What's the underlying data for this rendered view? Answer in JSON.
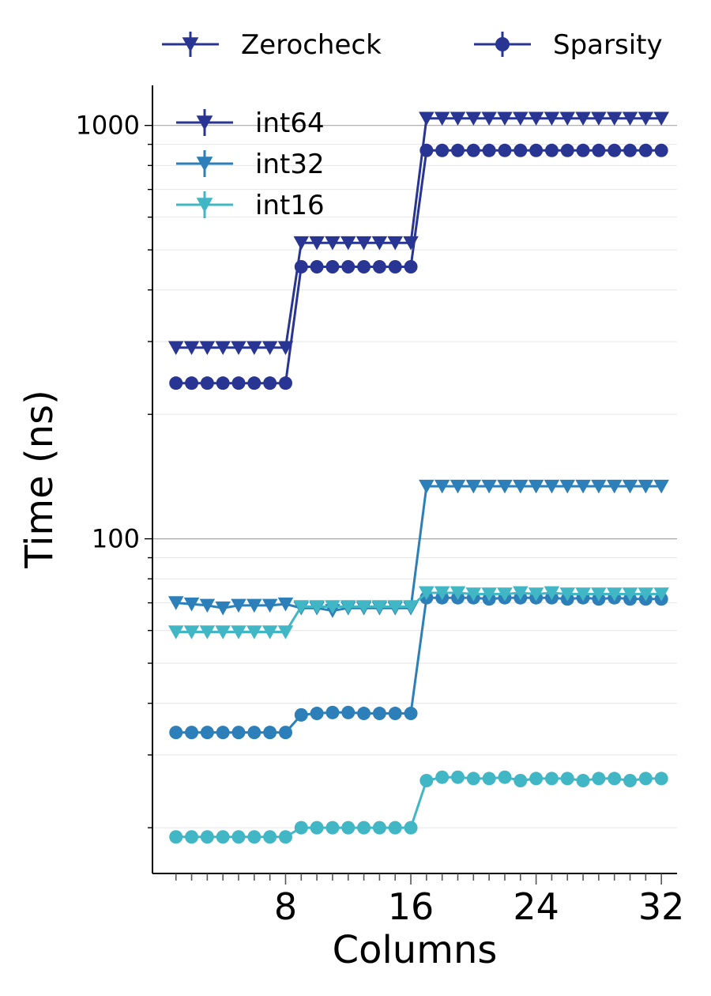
{
  "chart_data": {
    "type": "line",
    "xlabel": "Columns",
    "ylabel": "Time (ns)",
    "yscale": "log",
    "ylim": [
      15.5,
      1250
    ],
    "xlim": [
      -0.5,
      33
    ],
    "x_ticks": [
      8,
      16,
      24,
      32
    ],
    "y_ticks": [
      100,
      1000
    ],
    "y_tick_labels": [
      "100",
      "1000"
    ],
    "grid": "horizontal",
    "legend_top": {
      "placement": "top, above plot",
      "items": [
        {
          "label": "Zerocheck",
          "marker": "triangle-down"
        },
        {
          "label": "Sparsity",
          "marker": "circle"
        }
      ]
    },
    "legend_inner": {
      "placement": "upper-left",
      "items": [
        {
          "label": "int64",
          "color": "#283593"
        },
        {
          "label": "int32",
          "color": "#2c7fb8"
        },
        {
          "label": "int16",
          "color": "#41b6c4"
        }
      ]
    },
    "x": [
      1,
      2,
      3,
      4,
      5,
      6,
      7,
      8,
      9,
      10,
      11,
      12,
      13,
      14,
      15,
      16,
      17,
      18,
      19,
      20,
      21,
      22,
      23,
      24,
      25,
      26,
      27,
      28,
      29,
      30,
      31,
      32
    ],
    "series": [
      {
        "label": "int64",
        "marker": "triangle-down",
        "color": "#283593",
        "values": [
          290,
          290,
          290,
          290,
          290,
          290,
          290,
          290,
          520,
          520,
          520,
          520,
          520,
          520,
          520,
          520,
          1040,
          1040,
          1040,
          1040,
          1040,
          1040,
          1040,
          1040,
          1040,
          1040,
          1040,
          1040,
          1040,
          1040,
          1040,
          1040
        ]
      },
      {
        "label": "int64",
        "marker": "circle",
        "color": "#283593",
        "values": [
          238,
          238,
          238,
          238,
          238,
          238,
          238,
          238,
          455,
          455,
          455,
          455,
          455,
          455,
          455,
          455,
          870,
          870,
          870,
          870,
          870,
          870,
          870,
          870,
          870,
          870,
          870,
          870,
          870,
          870,
          870,
          870
        ]
      },
      {
        "label": "int32",
        "marker": "triangle-down",
        "color": "#2c7fb8",
        "values": [
          70,
          69.5,
          69,
          68,
          69,
          69,
          69,
          69.5,
          68,
          68,
          67,
          68,
          68,
          68,
          68,
          68,
          134,
          134,
          134,
          134,
          134,
          134,
          134,
          134,
          134,
          134,
          134,
          134,
          134,
          134,
          134,
          134
        ]
      },
      {
        "label": "int32",
        "marker": "circle",
        "color": "#2c7fb8",
        "values": [
          34,
          34,
          34,
          34,
          34,
          34,
          34,
          34,
          37.5,
          37.8,
          38,
          38,
          37.8,
          37.8,
          37.8,
          37.8,
          72,
          72,
          72,
          72,
          71.5,
          72,
          72,
          72,
          72,
          71.5,
          72,
          71.5,
          72,
          71.5,
          71.5,
          71.5
        ]
      },
      {
        "label": "int16",
        "marker": "triangle-down",
        "color": "#41b6c4",
        "values": [
          59.5,
          59.5,
          59.5,
          59.5,
          59.5,
          59.5,
          59.5,
          59.5,
          68.5,
          68.5,
          68.5,
          68.5,
          68.5,
          68.5,
          68.5,
          68.5,
          74,
          74,
          74,
          73.5,
          73.5,
          73.5,
          74,
          73.5,
          74,
          73.5,
          73.5,
          73.5,
          73.5,
          73.5,
          73.5,
          73.5
        ]
      },
      {
        "label": "int16",
        "marker": "circle",
        "color": "#41b6c4",
        "values": [
          19,
          19,
          19,
          19,
          19,
          19,
          19,
          19,
          20,
          20,
          20,
          20,
          20,
          20,
          20,
          20,
          26,
          26.5,
          26.5,
          26.3,
          26.3,
          26.5,
          26,
          26.3,
          26.3,
          26.3,
          26,
          26.3,
          26.3,
          26,
          26.3,
          26.3
        ]
      }
    ]
  }
}
